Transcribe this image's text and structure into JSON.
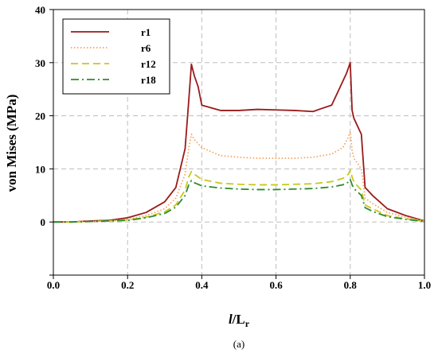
{
  "chart_data": {
    "type": "line",
    "xlabel_italic": "l",
    "xlabel_rest": "/L",
    "xlabel_sub": "r",
    "ylabel": "von Mises (MPa)",
    "caption": "(a)",
    "xlim": [
      0,
      1
    ],
    "ylim": [
      -10,
      40
    ],
    "xticks": [
      0,
      0.2,
      0.4,
      0.6,
      0.8,
      1
    ],
    "xtick_labels": [
      "0.0",
      "0.2",
      "0.4",
      "0.6",
      "0.8",
      "1.0"
    ],
    "yticks": [
      0,
      10,
      20,
      30,
      40
    ],
    "ytick_labels": [
      "0",
      "10",
      "20",
      "30",
      "40"
    ],
    "grid": true,
    "legend_position": "top-left",
    "series": [
      {
        "name": "r1",
        "color": "#9b1a1a",
        "dash": "solid",
        "x": [
          0,
          0.05,
          0.1,
          0.15,
          0.2,
          0.25,
          0.3,
          0.33,
          0.355,
          0.365,
          0.372,
          0.38,
          0.39,
          0.4,
          0.45,
          0.5,
          0.55,
          0.6,
          0.65,
          0.7,
          0.72,
          0.75,
          0.77,
          0.79,
          0.8,
          0.805,
          0.81,
          0.83,
          0.84,
          0.86,
          0.9,
          0.95,
          1
        ],
        "y": [
          0,
          0,
          0.2,
          0.3,
          0.8,
          1.8,
          3.8,
          6.5,
          13.8,
          23,
          29.7,
          27.5,
          25.5,
          22,
          21,
          21,
          21.2,
          21.1,
          21,
          20.8,
          21.3,
          22,
          25,
          28,
          30,
          21,
          19.5,
          16.5,
          6.5,
          5,
          2.5,
          1.2,
          0.2
        ]
      },
      {
        "name": "r6",
        "color": "#f4a460",
        "dash": "dot",
        "x": [
          0,
          0.05,
          0.1,
          0.15,
          0.2,
          0.25,
          0.3,
          0.33,
          0.355,
          0.365,
          0.372,
          0.38,
          0.4,
          0.45,
          0.5,
          0.55,
          0.6,
          0.65,
          0.7,
          0.75,
          0.78,
          0.795,
          0.8,
          0.805,
          0.81,
          0.83,
          0.84,
          0.86,
          0.9,
          0.95,
          1
        ],
        "y": [
          0,
          0,
          0.1,
          0.2,
          0.5,
          1.2,
          2.5,
          4.5,
          9,
          14,
          16.5,
          15.5,
          14,
          12.5,
          12.2,
          12,
          12,
          12,
          12.2,
          12.8,
          14,
          16,
          17,
          13.5,
          12,
          10,
          4.5,
          3.5,
          1.8,
          0.9,
          0.2
        ]
      },
      {
        "name": "r12",
        "color": "#c8c81e",
        "dash": "dash",
        "x": [
          0,
          0.05,
          0.1,
          0.15,
          0.2,
          0.25,
          0.3,
          0.33,
          0.355,
          0.365,
          0.372,
          0.38,
          0.4,
          0.45,
          0.5,
          0.55,
          0.6,
          0.65,
          0.7,
          0.75,
          0.78,
          0.795,
          0.8,
          0.805,
          0.81,
          0.83,
          0.84,
          0.86,
          0.9,
          0.95,
          1
        ],
        "y": [
          0,
          0,
          0.1,
          0.2,
          0.4,
          0.9,
          1.9,
          3.2,
          6,
          8.5,
          9.5,
          9,
          8,
          7.3,
          7.1,
          7,
          7,
          7.1,
          7.2,
          7.6,
          8.2,
          9,
          9.8,
          8.5,
          7.5,
          6,
          3.2,
          2.5,
          1.2,
          0.6,
          0.1
        ]
      },
      {
        "name": "r18",
        "color": "#2e8b2e",
        "dash": "dashdot",
        "x": [
          0,
          0.05,
          0.1,
          0.15,
          0.2,
          0.25,
          0.3,
          0.33,
          0.355,
          0.365,
          0.372,
          0.38,
          0.4,
          0.45,
          0.5,
          0.55,
          0.6,
          0.65,
          0.7,
          0.75,
          0.78,
          0.795,
          0.8,
          0.805,
          0.81,
          0.83,
          0.84,
          0.86,
          0.9,
          0.95,
          1
        ],
        "y": [
          0,
          0,
          0.1,
          0.2,
          0.3,
          0.8,
          1.6,
          2.8,
          5,
          7,
          7.8,
          7.4,
          6.8,
          6.4,
          6.2,
          6.1,
          6.1,
          6.2,
          6.3,
          6.6,
          7,
          7.5,
          8,
          7,
          6.3,
          5,
          2.7,
          2,
          1,
          0.5,
          0.1
        ]
      }
    ]
  }
}
